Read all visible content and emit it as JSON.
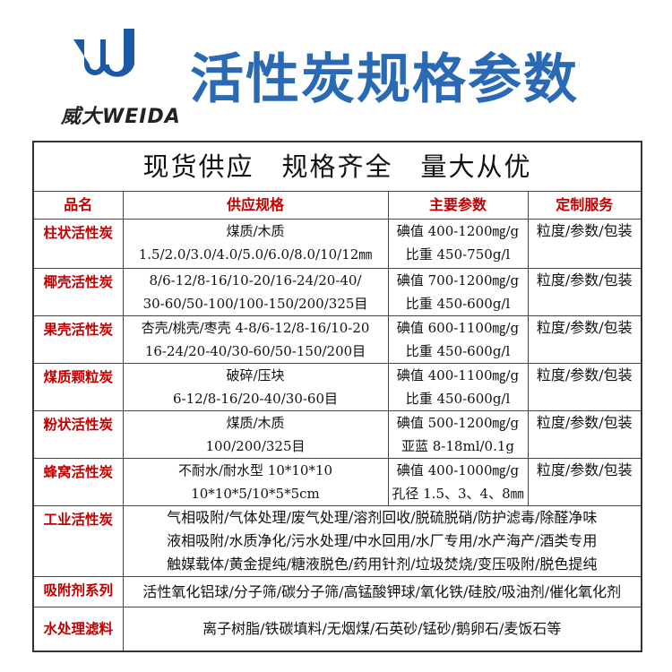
{
  "logo": {
    "text": "威大WEIDA",
    "color": "#1b58a5"
  },
  "title": "活性炭规格参数",
  "banner": "现货供应　规格齐全　量大从优",
  "headers": [
    "品名",
    "供应规格",
    "主要参数",
    "定制服务"
  ],
  "rows": [
    {
      "name": "柱状活性炭",
      "spec": [
        "煤质/木质",
        "1.5/2.0/3.0/4.0/5.0/6.0/8.0/10/12㎜"
      ],
      "params": [
        "碘值 400-1200㎎/g",
        "比重 450-750g/l"
      ],
      "service": "粒度/参数/包装"
    },
    {
      "name": "椰壳活性炭",
      "spec": [
        "8/6-12/8-16/10-20/16-24/20-40/",
        "30-60/50-100/100-150/200/325目"
      ],
      "params": [
        "碘值 700-1200㎎/g",
        "比重 450-600g/l"
      ],
      "service": "粒度/参数/包装"
    },
    {
      "name": "果壳活性炭",
      "spec": [
        "杏壳/桃壳/枣壳 4-8/6-12/8-16/10-20",
        "16-24/20-40/30-60/50-150/200目"
      ],
      "params": [
        "碘值 600-1100㎎/g",
        "比重 450-600g/l"
      ],
      "service": "粒度/参数/包装"
    },
    {
      "name": "煤质颗粒炭",
      "spec": [
        "破碎/压块",
        "6-12/8-16/20-40/30-60目"
      ],
      "params": [
        "碘值 400-1100㎎/g",
        "比重 450-600g/l"
      ],
      "service": "粒度/参数/包装"
    },
    {
      "name": "粉状活性炭",
      "spec": [
        "煤质/木质",
        "100/200/325目"
      ],
      "params": [
        "碘值 500-1200㎎/g",
        "亚蓝 8-18ml/0.1g"
      ],
      "service": "粒度/参数/包装"
    },
    {
      "name": "蜂窝活性炭",
      "spec": [
        "不耐水/耐水型 10*10*10",
        "10*10*5/10*5*5cm"
      ],
      "params": [
        "碘值 400-1000㎎/g",
        "孔径 1.5、3、4、8㎜"
      ],
      "service": "粒度/参数/包装"
    }
  ],
  "wide_rows": [
    {
      "name": "工业活性炭",
      "lines": [
        "气相吸附/气体处理/废气处理/溶剂回收/脱硫脱硝/防护滤毒/除醛净味",
        "液相吸附/水质净化/污水处理/中水回用/水厂专用/水产海产/酒类专用",
        "触媒载体/黄金提纯/糖液脱色/药用针剂/垃圾焚烧/变压吸附/脱色提纯"
      ]
    },
    {
      "name": "吸附剂系列",
      "lines": [
        "活性氧化铝球/分子筛/碳分子筛/高锰酸钾球/氧化铁/硅胶/吸油剂/催化氧化剂"
      ]
    },
    {
      "name": "水处理滤料",
      "lines": [
        "离子树脂/铁碳填料/无烟煤/石英砂/锰砂/鹅卵石/麦饭石等"
      ]
    }
  ]
}
